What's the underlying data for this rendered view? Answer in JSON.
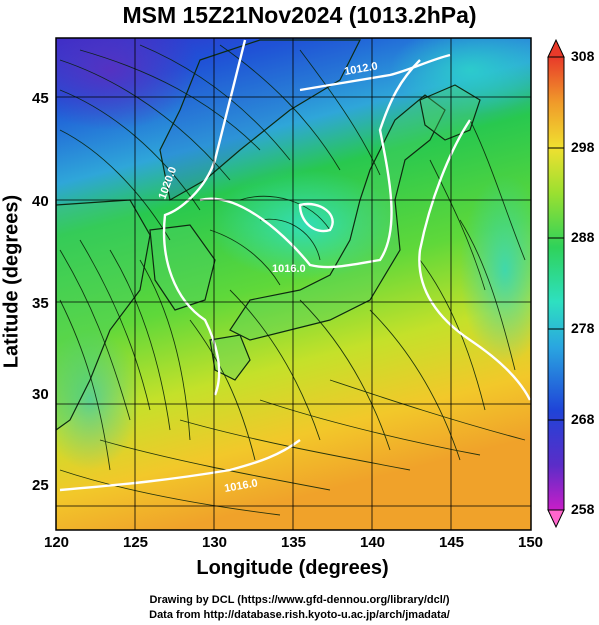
{
  "title": "MSM 15Z21Nov2024 (1013.2hPa)",
  "x_axis": {
    "label": "Longitude (degrees)",
    "ticks": [
      "120",
      "125",
      "130",
      "135",
      "140",
      "145",
      "150"
    ],
    "range": [
      120,
      150
    ]
  },
  "y_axis": {
    "label": "Latitude  (degrees)",
    "ticks": [
      "25",
      "30",
      "35",
      "40",
      "45"
    ],
    "range": [
      22.5,
      47.5
    ]
  },
  "colorbar": {
    "ticks": [
      "308",
      "298",
      "288",
      "278",
      "268",
      "258"
    ],
    "range": [
      258,
      308
    ]
  },
  "contours": [
    {
      "label": "1020.0",
      "value": 1020.0
    },
    {
      "label": "1016.0",
      "value": 1016.0
    },
    {
      "label": "1012.0",
      "value": 1012.0
    },
    {
      "label": "1016.0",
      "value": 1016.0
    }
  ],
  "credits": {
    "line1": "Drawing by DCL (https://www.gfd-dennou.org/library/dcl/)",
    "line2": "Data from http://database.rish.kyoto-u.ac.jp/arch/jmadata/"
  }
}
